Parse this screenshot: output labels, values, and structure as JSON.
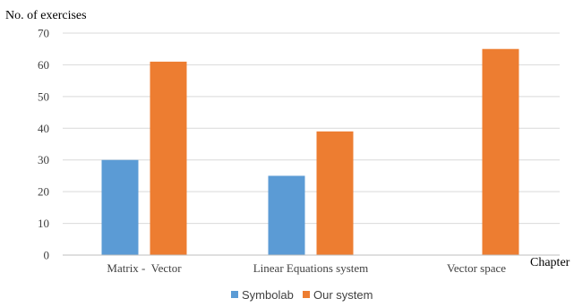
{
  "chart_data": {
    "type": "bar",
    "ylabel": "No. of exercises",
    "xlabel": "Chapter",
    "categories": [
      "Matrix -  Vector",
      "Linear Equations system",
      "Vector space"
    ],
    "series": [
      {
        "name": "Symbolab",
        "values": [
          30,
          25,
          null
        ],
        "color": "#5b9bd5"
      },
      {
        "name": "Our system",
        "values": [
          61,
          39,
          65
        ],
        "color": "#ed7d31"
      }
    ],
    "ylim": [
      0,
      70
    ],
    "yticks": [
      0,
      10,
      20,
      30,
      40,
      50,
      60,
      70
    ],
    "grid": true,
    "legend_position": "bottom"
  }
}
